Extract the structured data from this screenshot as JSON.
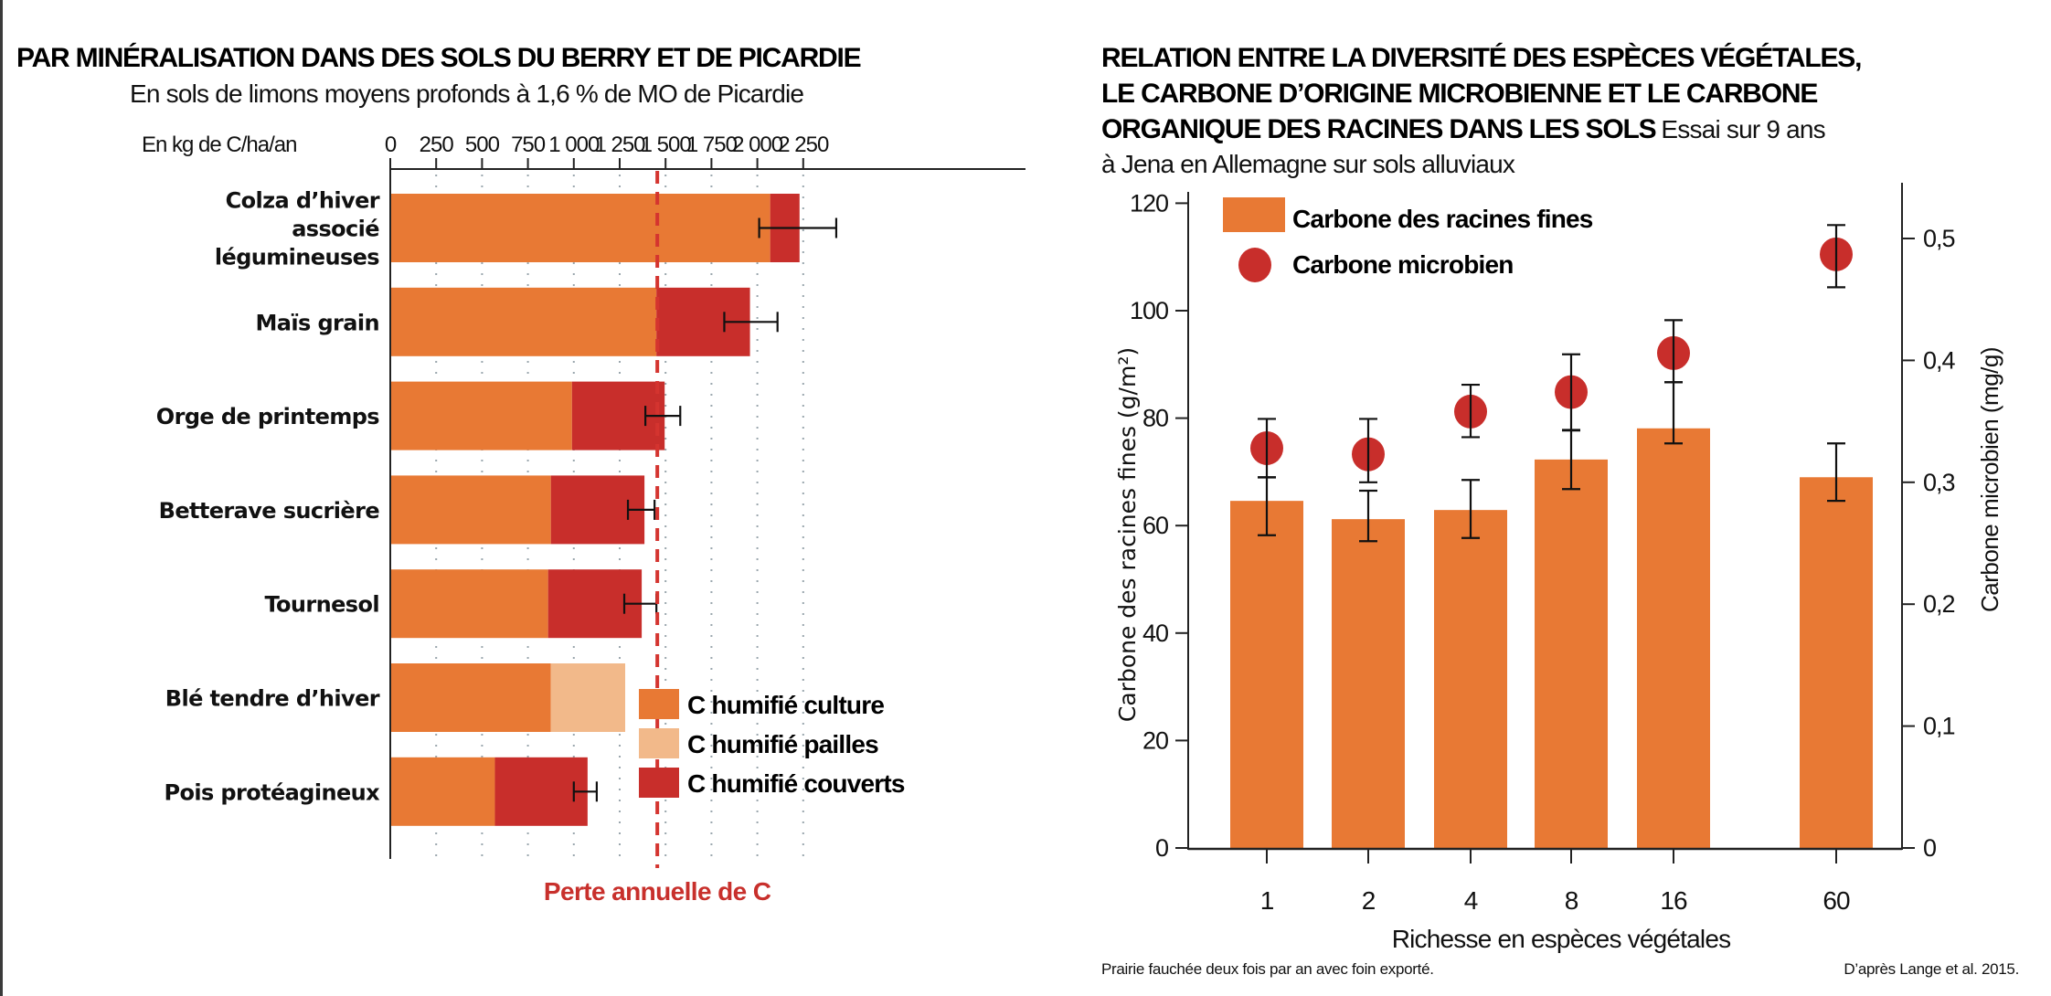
{
  "colors": {
    "culture": "#E87934",
    "pailles": "#F2B98A",
    "couverts": "#C82E2B",
    "loss_line": "#D4342F",
    "root_bar": "#E87934",
    "microbe_dot": "#C82E2B"
  },
  "chart_data": [
    {
      "type": "bar",
      "orientation": "horizontal",
      "stacked": true,
      "title": "PAR MINÉRALISATION DANS DES SOLS DU BERRY ET DE PICARDIE",
      "subtitle": "En sols de limons moyens profonds à 1,6 % de MO de Picardie",
      "xlabel": "En kg de C/ha/an",
      "xlim": [
        0,
        2450
      ],
      "xticks": [
        0,
        250,
        500,
        750,
        1000,
        1250,
        1500,
        1750,
        2000,
        2250
      ],
      "xtick_labels": [
        "0",
        "250",
        "500",
        "750",
        "1 000",
        "1 250",
        "1 500",
        "1 750",
        "2 000",
        "2 250"
      ],
      "grid": "vertical dotted",
      "categories": [
        "Colza d’hiver associé légumineuses",
        "Maïs grain",
        "Orge de printemps",
        "Betterave sucrière",
        "Tournesol",
        "Blé tendre d’hiver",
        "Pois protéagineux"
      ],
      "category_lines": [
        [
          "Colza d’hiver",
          "associé",
          "légumineuses"
        ],
        [
          "Maïs grain"
        ],
        [
          "Orge de printemps"
        ],
        [
          "Betterave sucrière"
        ],
        [
          "Tournesol"
        ],
        [
          "Blé tendre d’hiver"
        ],
        [
          "Pois protéagineux"
        ]
      ],
      "series": [
        {
          "name": "C humifié culture",
          "key": "culture",
          "values": [
            2070,
            1450,
            990,
            875,
            860,
            875,
            570
          ]
        },
        {
          "name": "C humifié pailles",
          "key": "pailles",
          "values": [
            0,
            0,
            0,
            0,
            0,
            405,
            0
          ]
        },
        {
          "name": "C humifié couverts",
          "key": "couverts",
          "values": [
            160,
            510,
            505,
            510,
            510,
            0,
            505
          ]
        }
      ],
      "error_bars": [
        [
          2010,
          2430
        ],
        [
          1820,
          2110
        ],
        [
          1390,
          1580
        ],
        [
          1295,
          1440
        ],
        [
          1275,
          1450
        ],
        null,
        [
          1000,
          1125
        ]
      ],
      "reference_line": {
        "value": 1455,
        "label": "Perte annuelle de C",
        "style": "dashed"
      },
      "legend": {
        "position": "bottom-right",
        "items": [
          "C humifié culture",
          "C humifié pailles",
          "C humifié couverts"
        ]
      }
    },
    {
      "type": "bar",
      "title_bold": "RELATION ENTRE LA DIVERSITÉ DES ESPÈCES VÉGÉTALES, LE CARBONE D’ORIGINE MICROBIENNE ET LE CARBONE ORGANIQUE DES RACINES DANS LES SOLS",
      "title_lines": [
        "RELATION ENTRE LA DIVERSITÉ DES ESPÈCES VÉGÉTALES,",
        "LE CARBONE D’ORIGINE MICROBIENNE ET LE CARBONE",
        "ORGANIQUE DES RACINES DANS LES SOLS"
      ],
      "subtitle": "Essai sur 9 ans à Jena en Allemagne sur sols alluviaux",
      "subtitle_lines": [
        "Essai sur 9 ans",
        "à Jena en Allemagne sur sols alluviaux"
      ],
      "xlabel": "Richesse en espèces végétales",
      "categories": [
        "1",
        "2",
        "4",
        "8",
        "16",
        "60"
      ],
      "ylabel_left": "Carbone des racines fines (g/m²)",
      "ylim_left": [
        0,
        122
      ],
      "yticks_left": [
        0,
        20,
        40,
        60,
        80,
        100,
        120
      ],
      "ylabel_right": "Carbone microbien (mg/g)",
      "ylim_right": [
        0,
        0.54
      ],
      "yticks_right": [
        0,
        0.1,
        0.2,
        0.3,
        0.4,
        0.5
      ],
      "ytick_labels_right": [
        "0",
        "0,1",
        "0,2",
        "0,3",
        "0,4",
        "0,5"
      ],
      "series": [
        {
          "name": "Carbone des racines fines",
          "kind": "bar",
          "axis": "left",
          "values": [
            64.6,
            61.2,
            62.9,
            72.3,
            78.1,
            69.0
          ],
          "error": [
            [
              58.2,
              69.0
            ],
            [
              57.1,
              66.5
            ],
            [
              57.7,
              68.5
            ],
            [
              66.8,
              77.7
            ],
            [
              75.3,
              86.7
            ],
            [
              64.6,
              75.3
            ]
          ]
        },
        {
          "name": "Carbone microbien",
          "kind": "scatter",
          "axis": "right",
          "values": [
            0.328,
            0.323,
            0.358,
            0.374,
            0.406,
            0.487
          ],
          "error": [
            [
              0.304,
              0.352
            ],
            [
              0.3,
              0.352
            ],
            [
              0.337,
              0.38
            ],
            [
              0.343,
              0.405
            ],
            [
              0.382,
              0.433
            ],
            [
              0.46,
              0.511
            ]
          ]
        }
      ],
      "legend": {
        "position": "top-left",
        "items": [
          "Carbone des racines fines",
          "Carbone microbien"
        ]
      },
      "footnote_left": "Prairie fauchée deux fois par an avec foin exporté.",
      "footnote_right": "D’après Lange et al. 2015."
    }
  ]
}
